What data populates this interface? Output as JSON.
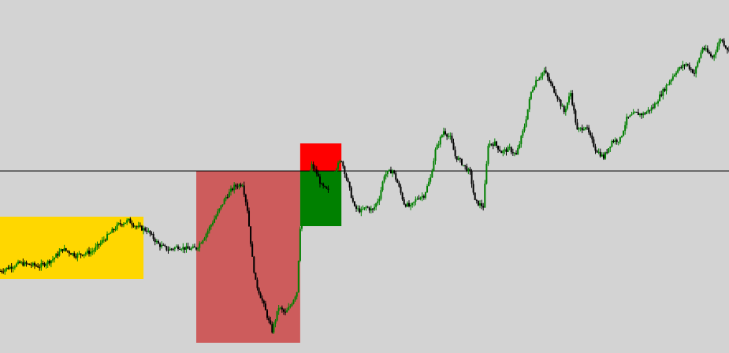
{
  "chart_data": {
    "type": "candlestick",
    "title": "",
    "xlabel": "",
    "ylabel": "",
    "grid": false,
    "ylim": [
      0,
      448
    ],
    "colors": {
      "background": "#d3d3d3",
      "bull": "#008000",
      "bear": "#000000",
      "level_line": "#000000",
      "zone_consolidation": "#ffd700",
      "zone_drop": "#cd5c5c",
      "zone_sell": "#ff0000",
      "zone_buy": "#008000"
    },
    "horizontal_level": 231,
    "zones": [
      {
        "name": "consolidation-zone",
        "x_from": 0,
        "x_to": 87,
        "y_from": 94,
        "y_to": 173
      },
      {
        "name": "drop-zone",
        "x_from": 119,
        "x_to": 182,
        "y_from": 13,
        "y_to": 231
      },
      {
        "name": "sell-zone",
        "x_from": 182,
        "x_to": 207,
        "y_from": 231,
        "y_to": 266
      },
      {
        "name": "buy-zone",
        "x_from": 182,
        "x_to": 207,
        "y_from": 161,
        "y_to": 231
      }
    ],
    "close_path": [
      [
        0,
        104
      ],
      [
        12,
        114
      ],
      [
        24,
        110
      ],
      [
        32,
        119
      ],
      [
        38,
        132
      ],
      [
        46,
        124
      ],
      [
        56,
        129
      ],
      [
        64,
        146
      ],
      [
        72,
        163
      ],
      [
        78,
        168
      ],
      [
        83,
        160
      ],
      [
        89,
        156
      ],
      [
        96,
        138
      ],
      [
        102,
        131
      ],
      [
        108,
        135
      ],
      [
        114,
        132
      ],
      [
        119,
        133
      ],
      [
        124,
        148
      ],
      [
        132,
        178
      ],
      [
        137,
        198
      ],
      [
        142,
        211
      ],
      [
        147,
        215
      ],
      [
        150,
        182
      ],
      [
        153,
        120
      ],
      [
        155,
        90
      ],
      [
        160,
        60
      ],
      [
        163,
        40
      ],
      [
        165,
        28
      ],
      [
        169,
        58
      ],
      [
        173,
        50
      ],
      [
        176,
        60
      ],
      [
        180,
        78
      ],
      [
        182,
        160
      ],
      [
        186,
        210
      ],
      [
        189,
        238
      ],
      [
        192,
        228
      ],
      [
        195,
        212
      ],
      [
        199,
        205
      ],
      [
        203,
        233
      ],
      [
        207,
        245
      ],
      [
        211,
        215
      ],
      [
        215,
        184
      ],
      [
        219,
        180
      ],
      [
        222,
        185
      ],
      [
        226,
        181
      ],
      [
        230,
        198
      ],
      [
        233,
        226
      ],
      [
        238,
        232
      ],
      [
        241,
        216
      ],
      [
        245,
        190
      ],
      [
        249,
        185
      ],
      [
        253,
        197
      ],
      [
        257,
        200
      ],
      [
        261,
        222
      ],
      [
        264,
        257
      ],
      [
        269,
        282
      ],
      [
        273,
        273
      ],
      [
        276,
        250
      ],
      [
        280,
        241
      ],
      [
        285,
        228
      ],
      [
        288,
        192
      ],
      [
        293,
        186
      ],
      [
        296,
        265
      ],
      [
        300,
        266
      ],
      [
        304,
        255
      ],
      [
        309,
        259
      ],
      [
        313,
        251
      ],
      [
        318,
        288
      ],
      [
        322,
        331
      ],
      [
        325,
        346
      ],
      [
        330,
        358
      ],
      [
        333,
        345
      ],
      [
        338,
        325
      ],
      [
        342,
        306
      ],
      [
        346,
        330
      ],
      [
        350,
        282
      ],
      [
        355,
        288
      ],
      [
        361,
        259
      ],
      [
        366,
        248
      ],
      [
        371,
        269
      ],
      [
        376,
        271
      ],
      [
        380,
        297
      ],
      [
        385,
        304
      ],
      [
        390,
        303
      ],
      [
        396,
        312
      ],
      [
        400,
        326
      ],
      [
        405,
        342
      ],
      [
        410,
        358
      ],
      [
        416,
        367
      ],
      [
        421,
        355
      ],
      [
        426,
        388
      ],
      [
        432,
        375
      ],
      [
        437,
        399
      ],
      [
        442,
        383
      ]
    ]
  }
}
